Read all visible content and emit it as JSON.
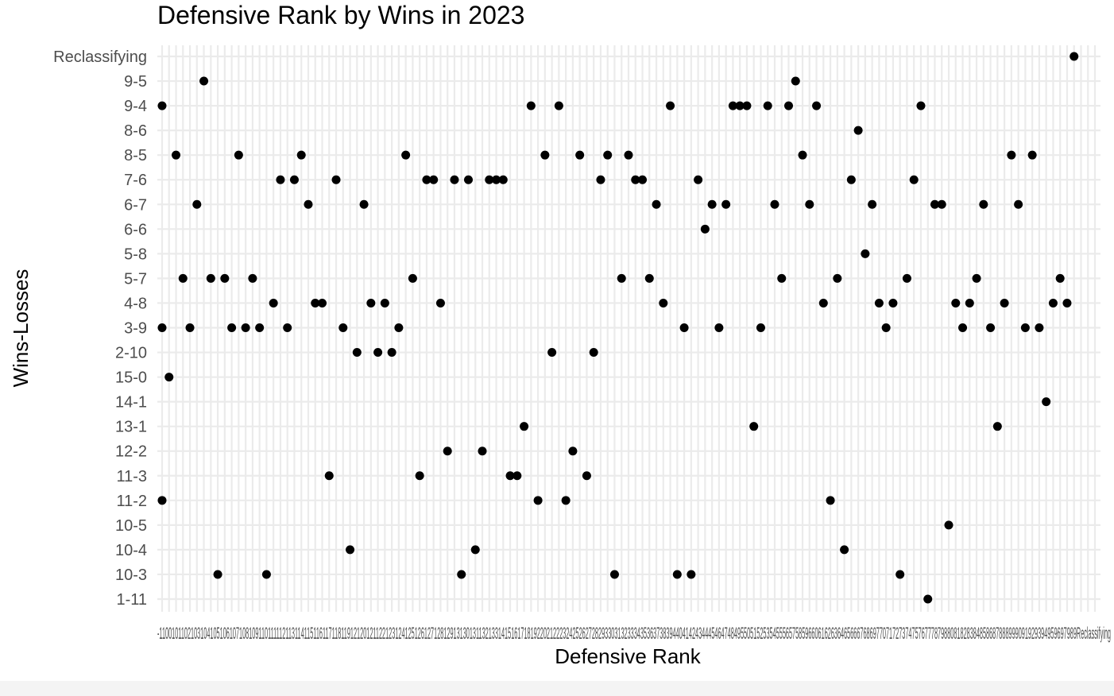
{
  "chart_data": {
    "type": "scatter",
    "title": "Defensive Rank by Wins in 2023",
    "xlabel": "Defensive Rank",
    "ylabel": "Wins-Losses",
    "grid": true,
    "y_categories": [
      "1-11",
      "10-3",
      "10-4",
      "10-5",
      "11-2",
      "11-3",
      "12-2",
      "13-1",
      "14-1",
      "15-0",
      "2-10",
      "3-9",
      "4-8",
      "5-7",
      "5-8",
      "6-6",
      "6-7",
      "7-6",
      "8-5",
      "8-6",
      "9-4",
      "9-5",
      "Reclassifying"
    ],
    "x_tick_labels": [
      "-1",
      "1",
      "10",
      "100",
      "101",
      "102",
      "103",
      "104",
      "105",
      "106",
      "107",
      "108",
      "109",
      "11",
      "110",
      "111",
      "112",
      "113",
      "114",
      "115",
      "116",
      "117",
      "118",
      "119",
      "12",
      "120",
      "121",
      "122",
      "123",
      "124",
      "125",
      "126",
      "127",
      "128",
      "129",
      "13",
      "130",
      "131",
      "132",
      "133",
      "14",
      "15",
      "16",
      "17",
      "18",
      "19",
      "2",
      "20",
      "21",
      "22",
      "23",
      "24",
      "25",
      "26",
      "27",
      "28",
      "29",
      "3",
      "30",
      "31",
      "32",
      "33",
      "34",
      "35",
      "36",
      "37",
      "38",
      "39",
      "4",
      "40",
      "41",
      "42",
      "43",
      "44",
      "45",
      "46",
      "47",
      "48",
      "49",
      "5",
      "50",
      "51",
      "52",
      "53",
      "54",
      "55",
      "56",
      "57",
      "58",
      "59",
      "6",
      "60",
      "61",
      "62",
      "63",
      "64",
      "65",
      "66",
      "67",
      "68",
      "69",
      "7",
      "70",
      "71",
      "72",
      "73",
      "74",
      "75",
      "76",
      "77",
      "78",
      "79",
      "8",
      "80",
      "81",
      "82",
      "83",
      "84",
      "85",
      "86",
      "87",
      "88",
      "89",
      "9",
      "90",
      "91",
      "92",
      "93",
      "94",
      "95",
      "96",
      "97",
      "98",
      "99",
      "Reclassifying"
    ],
    "x_tick_label_strip": "-1100101102103104105106107108109110111112113114115116117118119121201211221231241251261271281291313013113213314151617181922021222324252627282933031323334353637383944041424344454647484955051525354555657585966061626364656667686977071727374757677787988081828384858687888999091929394959697989Reclassifying",
    "points": [
      {
        "x": 0,
        "y": "11-2"
      },
      {
        "x": 0,
        "y": "3-9"
      },
      {
        "x": 0,
        "y": "9-4"
      },
      {
        "x": 1,
        "y": "15-0"
      },
      {
        "x": 2,
        "y": "8-5"
      },
      {
        "x": 3,
        "y": "5-7"
      },
      {
        "x": 4,
        "y": "3-9"
      },
      {
        "x": 5,
        "y": "6-7"
      },
      {
        "x": 6,
        "y": "9-5"
      },
      {
        "x": 7,
        "y": "5-7"
      },
      {
        "x": 8,
        "y": "10-3"
      },
      {
        "x": 9,
        "y": "5-7"
      },
      {
        "x": 10,
        "y": "3-9"
      },
      {
        "x": 11,
        "y": "8-5"
      },
      {
        "x": 12,
        "y": "3-9"
      },
      {
        "x": 13,
        "y": "5-7"
      },
      {
        "x": 14,
        "y": "3-9"
      },
      {
        "x": 15,
        "y": "10-3"
      },
      {
        "x": 16,
        "y": "4-8"
      },
      {
        "x": 17,
        "y": "7-6"
      },
      {
        "x": 18,
        "y": "3-9"
      },
      {
        "x": 19,
        "y": "7-6"
      },
      {
        "x": 20,
        "y": "8-5"
      },
      {
        "x": 21,
        "y": "6-7"
      },
      {
        "x": 22,
        "y": "4-8"
      },
      {
        "x": 23,
        "y": "4-8"
      },
      {
        "x": 24,
        "y": "11-3"
      },
      {
        "x": 25,
        "y": "7-6"
      },
      {
        "x": 26,
        "y": "3-9"
      },
      {
        "x": 27,
        "y": "10-4"
      },
      {
        "x": 28,
        "y": "2-10"
      },
      {
        "x": 29,
        "y": "6-7"
      },
      {
        "x": 30,
        "y": "4-8"
      },
      {
        "x": 31,
        "y": "2-10"
      },
      {
        "x": 32,
        "y": "4-8"
      },
      {
        "x": 33,
        "y": "2-10"
      },
      {
        "x": 34,
        "y": "3-9"
      },
      {
        "x": 35,
        "y": "8-5"
      },
      {
        "x": 36,
        "y": "5-7"
      },
      {
        "x": 37,
        "y": "11-3"
      },
      {
        "x": 38,
        "y": "7-6"
      },
      {
        "x": 39,
        "y": "7-6"
      },
      {
        "x": 40,
        "y": "4-8"
      },
      {
        "x": 41,
        "y": "12-2"
      },
      {
        "x": 42,
        "y": "7-6"
      },
      {
        "x": 43,
        "y": "10-3"
      },
      {
        "x": 44,
        "y": "7-6"
      },
      {
        "x": 45,
        "y": "10-4"
      },
      {
        "x": 46,
        "y": "12-2"
      },
      {
        "x": 47,
        "y": "7-6"
      },
      {
        "x": 48,
        "y": "7-6"
      },
      {
        "x": 49,
        "y": "7-6"
      },
      {
        "x": 50,
        "y": "11-3"
      },
      {
        "x": 51,
        "y": "11-3"
      },
      {
        "x": 52,
        "y": "13-1"
      },
      {
        "x": 53,
        "y": "9-4"
      },
      {
        "x": 54,
        "y": "11-2"
      },
      {
        "x": 55,
        "y": "8-5"
      },
      {
        "x": 56,
        "y": "2-10"
      },
      {
        "x": 57,
        "y": "9-4"
      },
      {
        "x": 58,
        "y": "11-2"
      },
      {
        "x": 59,
        "y": "12-2"
      },
      {
        "x": 60,
        "y": "8-5"
      },
      {
        "x": 61,
        "y": "11-3"
      },
      {
        "x": 62,
        "y": "2-10"
      },
      {
        "x": 63,
        "y": "7-6"
      },
      {
        "x": 64,
        "y": "8-5"
      },
      {
        "x": 65,
        "y": "10-3"
      },
      {
        "x": 66,
        "y": "5-7"
      },
      {
        "x": 67,
        "y": "8-5"
      },
      {
        "x": 68,
        "y": "7-6"
      },
      {
        "x": 69,
        "y": "7-6"
      },
      {
        "x": 70,
        "y": "5-7"
      },
      {
        "x": 71,
        "y": "6-7"
      },
      {
        "x": 72,
        "y": "4-8"
      },
      {
        "x": 73,
        "y": "9-4"
      },
      {
        "x": 74,
        "y": "10-3"
      },
      {
        "x": 75,
        "y": "3-9"
      },
      {
        "x": 76,
        "y": "10-3"
      },
      {
        "x": 77,
        "y": "7-6"
      },
      {
        "x": 78,
        "y": "6-6"
      },
      {
        "x": 79,
        "y": "6-7"
      },
      {
        "x": 80,
        "y": "3-9"
      },
      {
        "x": 81,
        "y": "6-7"
      },
      {
        "x": 82,
        "y": "9-4"
      },
      {
        "x": 83,
        "y": "9-4"
      },
      {
        "x": 84,
        "y": "9-4"
      },
      {
        "x": 85,
        "y": "13-1"
      },
      {
        "x": 86,
        "y": "3-9"
      },
      {
        "x": 87,
        "y": "9-4"
      },
      {
        "x": 88,
        "y": "6-7"
      },
      {
        "x": 89,
        "y": "5-7"
      },
      {
        "x": 90,
        "y": "9-4"
      },
      {
        "x": 91,
        "y": "9-5"
      },
      {
        "x": 92,
        "y": "8-5"
      },
      {
        "x": 93,
        "y": "6-7"
      },
      {
        "x": 94,
        "y": "9-4"
      },
      {
        "x": 95,
        "y": "4-8"
      },
      {
        "x": 96,
        "y": "11-2"
      },
      {
        "x": 97,
        "y": "5-7"
      },
      {
        "x": 98,
        "y": "10-4"
      },
      {
        "x": 99,
        "y": "7-6"
      },
      {
        "x": 100,
        "y": "8-6"
      },
      {
        "x": 101,
        "y": "5-8"
      },
      {
        "x": 102,
        "y": "6-7"
      },
      {
        "x": 103,
        "y": "4-8"
      },
      {
        "x": 104,
        "y": "3-9"
      },
      {
        "x": 105,
        "y": "4-8"
      },
      {
        "x": 106,
        "y": "10-3"
      },
      {
        "x": 107,
        "y": "5-7"
      },
      {
        "x": 108,
        "y": "7-6"
      },
      {
        "x": 109,
        "y": "9-4"
      },
      {
        "x": 110,
        "y": "1-11"
      },
      {
        "x": 111,
        "y": "6-7"
      },
      {
        "x": 112,
        "y": "6-7"
      },
      {
        "x": 113,
        "y": "10-5"
      },
      {
        "x": 114,
        "y": "4-8"
      },
      {
        "x": 115,
        "y": "3-9"
      },
      {
        "x": 116,
        "y": "4-8"
      },
      {
        "x": 117,
        "y": "5-7"
      },
      {
        "x": 118,
        "y": "6-7"
      },
      {
        "x": 119,
        "y": "3-9"
      },
      {
        "x": 120,
        "y": "13-1"
      },
      {
        "x": 121,
        "y": "4-8"
      },
      {
        "x": 122,
        "y": "8-5"
      },
      {
        "x": 123,
        "y": "6-7"
      },
      {
        "x": 124,
        "y": "3-9"
      },
      {
        "x": 125,
        "y": "8-5"
      },
      {
        "x": 126,
        "y": "3-9"
      },
      {
        "x": 127,
        "y": "14-1"
      },
      {
        "x": 128,
        "y": "4-8"
      },
      {
        "x": 129,
        "y": "5-7"
      },
      {
        "x": 130,
        "y": "4-8"
      },
      {
        "x": 131,
        "y": "Reclassifying"
      }
    ],
    "point_color": "#000000",
    "grid_color": "#ebebeb",
    "background": "#ffffff"
  }
}
